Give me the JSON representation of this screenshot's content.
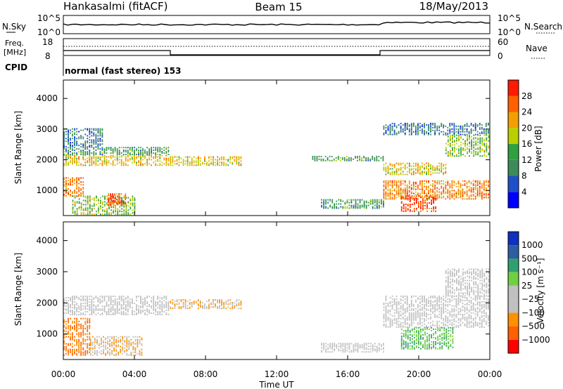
{
  "header": {
    "radar": "Hankasalmi (fitACF)",
    "beam": "Beam 15",
    "date": "18/May/2013"
  },
  "noise_panel": {
    "left_label": "N.Sky",
    "right_label": "N.Search",
    "left_ticks": [
      "10^5",
      "10^0"
    ],
    "right_ticks": [
      "10^5",
      "10^0"
    ]
  },
  "freq_panel": {
    "left_label_1": "Freq.",
    "left_label_2": "[MHz]",
    "left_ticks": [
      "18",
      "8"
    ],
    "right_label": "Nave",
    "right_ticks": [
      "60",
      "0"
    ]
  },
  "cpid_panel": {
    "label": "CPID",
    "text": "normal (fast stereo) 153"
  },
  "x_axis": {
    "label": "Time UT",
    "ticks": [
      "00:00",
      "04:00",
      "08:00",
      "12:00",
      "16:00",
      "20:00",
      "00:00"
    ]
  },
  "power_panel": {
    "ylabel": "Slant Range [km]",
    "yticks": [
      "4000",
      "3000",
      "2000",
      "1000"
    ],
    "colorbar_label": "Power [dB]",
    "colorbar_ticks": [
      "28",
      "24",
      "20",
      "16",
      "12",
      "8",
      "4"
    ],
    "colors": [
      "#0000ff",
      "#1f50c8",
      "#3d8a5a",
      "#30a040",
      "#b8d000",
      "#f0a000",
      "#ff6000",
      "#ff1a00"
    ]
  },
  "velocity_panel": {
    "ylabel": "Slant Range [km]",
    "yticks": [
      "4000",
      "3000",
      "2000",
      "1000"
    ],
    "colorbar_label": "Velocity [m s⁻¹]",
    "colorbar_ticks": [
      "1000",
      "500",
      "100",
      "25",
      "−25",
      "−100",
      "−500",
      "−1000"
    ],
    "colors": [
      "#ff0000",
      "#ff6000",
      "#ff9000",
      "#c0c0c0",
      "#c0c0c0",
      "#70d040",
      "#30a070",
      "#2c5ea0",
      "#1030c0"
    ]
  },
  "chart_data": {
    "type": "heatmap",
    "x_range_hours": [
      0,
      24
    ],
    "y_range_km": [
      180,
      4600
    ],
    "power_regions": [
      {
        "t": [
          0.0,
          6.0
        ],
        "r": [
          1800,
          2150
        ],
        "level": 20
      },
      {
        "t": [
          0.0,
          6.0
        ],
        "r": [
          2150,
          2400
        ],
        "level": 12
      },
      {
        "t": [
          0.0,
          2.2
        ],
        "r": [
          2400,
          3000
        ],
        "level": 8
      },
      {
        "t": [
          0.0,
          1.2
        ],
        "r": [
          800,
          1400
        ],
        "level": 24
      },
      {
        "t": [
          0.5,
          4.0
        ],
        "r": [
          200,
          800
        ],
        "level": 16
      },
      {
        "t": [
          2.5,
          3.5
        ],
        "r": [
          500,
          900
        ],
        "level": 28
      },
      {
        "t": [
          6.0,
          10.0
        ],
        "r": [
          1800,
          2100
        ],
        "level": 20
      },
      {
        "t": [
          14.5,
          18.0
        ],
        "r": [
          400,
          700
        ],
        "level": 12
      },
      {
        "t": [
          14.0,
          18.0
        ],
        "r": [
          1950,
          2100
        ],
        "level": 12
      },
      {
        "t": [
          18.0,
          21.5
        ],
        "r": [
          1500,
          1900
        ],
        "level": 20
      },
      {
        "t": [
          18.0,
          24.0
        ],
        "r": [
          700,
          1300
        ],
        "level": 24
      },
      {
        "t": [
          19.0,
          21.0
        ],
        "r": [
          300,
          800
        ],
        "level": 28
      },
      {
        "t": [
          21.5,
          24.0
        ],
        "r": [
          2100,
          2800
        ],
        "level": 16
      },
      {
        "t": [
          18.0,
          24.0
        ],
        "r": [
          2800,
          3200
        ],
        "level": 8
      }
    ],
    "velocity_regions": [
      {
        "t": [
          0.0,
          6.0
        ],
        "r": [
          1600,
          2200
        ],
        "v": 0
      },
      {
        "t": [
          0.0,
          1.5
        ],
        "r": [
          300,
          1500
        ],
        "v": -500
      },
      {
        "t": [
          1.5,
          4.5
        ],
        "r": [
          300,
          900
        ],
        "v": -100
      },
      {
        "t": [
          6.0,
          10.0
        ],
        "r": [
          1800,
          2100
        ],
        "v": -100
      },
      {
        "t": [
          14.5,
          18.0
        ],
        "r": [
          400,
          700
        ],
        "v": 0
      },
      {
        "t": [
          18.0,
          24.0
        ],
        "r": [
          1200,
          2200
        ],
        "v": 0
      },
      {
        "t": [
          19.0,
          22.0
        ],
        "r": [
          500,
          1200
        ],
        "v": 100
      },
      {
        "t": [
          21.5,
          24.0
        ],
        "r": [
          2200,
          3100
        ],
        "v": 0
      }
    ]
  }
}
